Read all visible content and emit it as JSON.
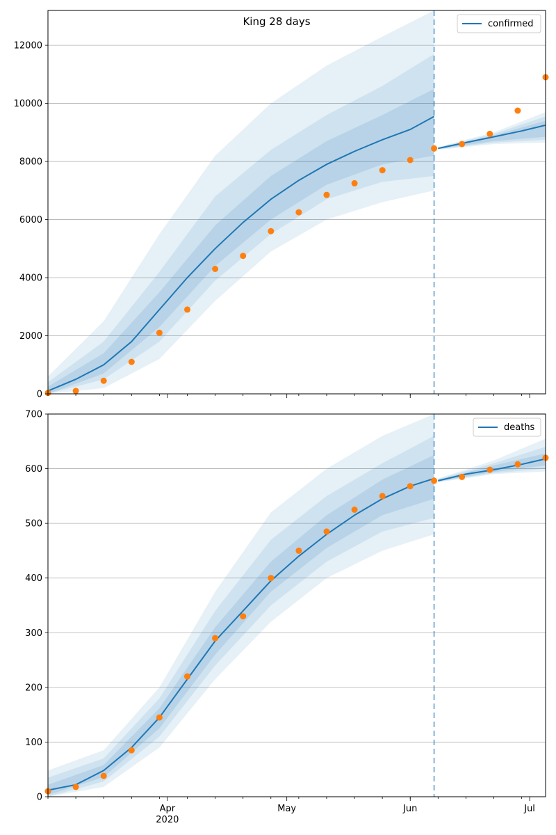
{
  "title": "King 28 days",
  "colors": {
    "line": "#1f77b4",
    "observed": "#ff7f0e",
    "band": "#1f77b4",
    "grid": "#b0b0b0"
  },
  "x_axis": {
    "start_date": "2020-03-02",
    "end_date": "2020-07-05",
    "cutoff_date": "2020-06-07",
    "ticks": [
      {
        "date": "2020-04-01",
        "label": "Apr",
        "sublabel": "2020"
      },
      {
        "date": "2020-05-01",
        "label": "May",
        "sublabel": ""
      },
      {
        "date": "2020-06-01",
        "label": "Jun",
        "sublabel": ""
      },
      {
        "date": "2020-07-01",
        "label": "Jul",
        "sublabel": ""
      }
    ]
  },
  "chart_data": [
    {
      "type": "line",
      "panel": "top",
      "title": "King 28 days",
      "legend": {
        "label": "confirmed",
        "placement": "top-right"
      },
      "ylim": [
        0,
        13200
      ],
      "yticks": [
        0,
        2000,
        4000,
        6000,
        8000,
        10000,
        12000
      ],
      "grid": "y",
      "median": [
        {
          "x": "2020-03-02",
          "y": 100
        },
        {
          "x": "2020-03-09",
          "y": 500
        },
        {
          "x": "2020-03-16",
          "y": 1000
        },
        {
          "x": "2020-03-23",
          "y": 1800
        },
        {
          "x": "2020-03-30",
          "y": 2900
        },
        {
          "x": "2020-04-06",
          "y": 4000
        },
        {
          "x": "2020-04-13",
          "y": 5000
        },
        {
          "x": "2020-04-20",
          "y": 5900
        },
        {
          "x": "2020-04-27",
          "y": 6700
        },
        {
          "x": "2020-05-04",
          "y": 7350
        },
        {
          "x": "2020-05-11",
          "y": 7900
        },
        {
          "x": "2020-05-18",
          "y": 8350
        },
        {
          "x": "2020-05-25",
          "y": 8750
        },
        {
          "x": "2020-06-01",
          "y": 9100
        },
        {
          "x": "2020-06-07",
          "y": 9550
        },
        {
          "x": "2020-06-08",
          "y": 8450
        },
        {
          "x": "2020-06-15",
          "y": 8650
        },
        {
          "x": "2020-06-22",
          "y": 8850
        },
        {
          "x": "2020-06-29",
          "y": 9050
        },
        {
          "x": "2020-07-05",
          "y": 9250
        }
      ],
      "bands": [
        {
          "name": "outer",
          "points": [
            {
              "x": "2020-03-02",
              "lo": 0,
              "hi": 600
            },
            {
              "x": "2020-03-16",
              "lo": 200,
              "hi": 2500
            },
            {
              "x": "2020-03-30",
              "lo": 1200,
              "hi": 5500
            },
            {
              "x": "2020-04-13",
              "lo": 3200,
              "hi": 8200
            },
            {
              "x": "2020-04-27",
              "lo": 4900,
              "hi": 10000
            },
            {
              "x": "2020-05-11",
              "lo": 6000,
              "hi": 11300
            },
            {
              "x": "2020-05-25",
              "lo": 6600,
              "hi": 12300
            },
            {
              "x": "2020-06-07",
              "lo": 7000,
              "hi": 13200
            },
            {
              "x": "2020-06-08",
              "lo": 8400,
              "hi": 8500
            },
            {
              "x": "2020-06-22",
              "lo": 8600,
              "hi": 9000
            },
            {
              "x": "2020-07-05",
              "lo": 8650,
              "hi": 9700
            }
          ]
        },
        {
          "name": "middle",
          "points": [
            {
              "x": "2020-03-02",
              "lo": 0,
              "hi": 400
            },
            {
              "x": "2020-03-16",
              "lo": 500,
              "hi": 1800
            },
            {
              "x": "2020-03-30",
              "lo": 1800,
              "hi": 4200
            },
            {
              "x": "2020-04-13",
              "lo": 3900,
              "hi": 6800
            },
            {
              "x": "2020-04-27",
              "lo": 5500,
              "hi": 8400
            },
            {
              "x": "2020-05-11",
              "lo": 6700,
              "hi": 9600
            },
            {
              "x": "2020-05-25",
              "lo": 7300,
              "hi": 10600
            },
            {
              "x": "2020-06-07",
              "lo": 7500,
              "hi": 11700
            },
            {
              "x": "2020-06-08",
              "lo": 8420,
              "hi": 8480
            },
            {
              "x": "2020-06-22",
              "lo": 8650,
              "hi": 8950
            },
            {
              "x": "2020-07-05",
              "lo": 8750,
              "hi": 9550
            }
          ]
        },
        {
          "name": "inner",
          "points": [
            {
              "x": "2020-03-02",
              "lo": 0,
              "hi": 250
            },
            {
              "x": "2020-03-16",
              "lo": 700,
              "hi": 1400
            },
            {
              "x": "2020-03-30",
              "lo": 2300,
              "hi": 3500
            },
            {
              "x": "2020-04-13",
              "lo": 4400,
              "hi": 5800
            },
            {
              "x": "2020-04-27",
              "lo": 6000,
              "hi": 7500
            },
            {
              "x": "2020-05-11",
              "lo": 7200,
              "hi": 8700
            },
            {
              "x": "2020-05-25",
              "lo": 7900,
              "hi": 9600
            },
            {
              "x": "2020-06-07",
              "lo": 8200,
              "hi": 10500
            },
            {
              "x": "2020-06-08",
              "lo": 8430,
              "hi": 8470
            },
            {
              "x": "2020-06-22",
              "lo": 8700,
              "hi": 8900
            },
            {
              "x": "2020-07-05",
              "lo": 8850,
              "hi": 9400
            }
          ]
        }
      ],
      "observed": [
        {
          "x": "2020-03-02",
          "y": 30
        },
        {
          "x": "2020-03-09",
          "y": 100
        },
        {
          "x": "2020-03-16",
          "y": 450
        },
        {
          "x": "2020-03-23",
          "y": 1100
        },
        {
          "x": "2020-03-30",
          "y": 2100
        },
        {
          "x": "2020-04-06",
          "y": 2900
        },
        {
          "x": "2020-04-13",
          "y": 4300
        },
        {
          "x": "2020-04-20",
          "y": 4750
        },
        {
          "x": "2020-04-27",
          "y": 5600
        },
        {
          "x": "2020-05-04",
          "y": 6250
        },
        {
          "x": "2020-05-11",
          "y": 6850
        },
        {
          "x": "2020-05-18",
          "y": 7250
        },
        {
          "x": "2020-05-25",
          "y": 7700
        },
        {
          "x": "2020-06-01",
          "y": 8050
        },
        {
          "x": "2020-06-07",
          "y": 8450
        },
        {
          "x": "2020-06-14",
          "y": 8600
        },
        {
          "x": "2020-06-21",
          "y": 8950
        },
        {
          "x": "2020-06-28",
          "y": 9750
        },
        {
          "x": "2020-07-05",
          "y": 10900
        }
      ]
    },
    {
      "type": "line",
      "panel": "bottom",
      "legend": {
        "label": "deaths",
        "placement": "top-right"
      },
      "ylim": [
        0,
        700
      ],
      "yticks": [
        0,
        100,
        200,
        300,
        400,
        500,
        600,
        700
      ],
      "grid": "y",
      "median": [
        {
          "x": "2020-03-02",
          "y": 12
        },
        {
          "x": "2020-03-09",
          "y": 22
        },
        {
          "x": "2020-03-16",
          "y": 48
        },
        {
          "x": "2020-03-23",
          "y": 90
        },
        {
          "x": "2020-03-30",
          "y": 145
        },
        {
          "x": "2020-04-06",
          "y": 215
        },
        {
          "x": "2020-04-13",
          "y": 285
        },
        {
          "x": "2020-04-20",
          "y": 340
        },
        {
          "x": "2020-04-27",
          "y": 395
        },
        {
          "x": "2020-05-04",
          "y": 440
        },
        {
          "x": "2020-05-11",
          "y": 480
        },
        {
          "x": "2020-05-18",
          "y": 515
        },
        {
          "x": "2020-05-25",
          "y": 545
        },
        {
          "x": "2020-06-01",
          "y": 568
        },
        {
          "x": "2020-06-07",
          "y": 582
        },
        {
          "x": "2020-06-08",
          "y": 578
        },
        {
          "x": "2020-06-15",
          "y": 590
        },
        {
          "x": "2020-06-22",
          "y": 598
        },
        {
          "x": "2020-06-29",
          "y": 608
        },
        {
          "x": "2020-07-05",
          "y": 618
        }
      ],
      "bands": [
        {
          "name": "outer",
          "points": [
            {
              "x": "2020-03-02",
              "lo": 0,
              "hi": 48
            },
            {
              "x": "2020-03-16",
              "lo": 18,
              "hi": 85
            },
            {
              "x": "2020-03-30",
              "lo": 90,
              "hi": 200
            },
            {
              "x": "2020-04-13",
              "lo": 215,
              "hi": 375
            },
            {
              "x": "2020-04-27",
              "lo": 320,
              "hi": 520
            },
            {
              "x": "2020-05-11",
              "lo": 400,
              "hi": 600
            },
            {
              "x": "2020-05-25",
              "lo": 450,
              "hi": 660
            },
            {
              "x": "2020-06-07",
              "lo": 480,
              "hi": 700
            },
            {
              "x": "2020-06-08",
              "lo": 575,
              "hi": 582
            },
            {
              "x": "2020-06-22",
              "lo": 590,
              "hi": 615
            },
            {
              "x": "2020-07-05",
              "lo": 595,
              "hi": 655
            }
          ]
        },
        {
          "name": "middle",
          "points": [
            {
              "x": "2020-03-02",
              "lo": 0,
              "hi": 35
            },
            {
              "x": "2020-03-16",
              "lo": 28,
              "hi": 70
            },
            {
              "x": "2020-03-30",
              "lo": 110,
              "hi": 180
            },
            {
              "x": "2020-04-13",
              "lo": 240,
              "hi": 340
            },
            {
              "x": "2020-04-27",
              "lo": 350,
              "hi": 470
            },
            {
              "x": "2020-05-11",
              "lo": 430,
              "hi": 550
            },
            {
              "x": "2020-05-25",
              "lo": 485,
              "hi": 610
            },
            {
              "x": "2020-06-07",
              "lo": 510,
              "hi": 660
            },
            {
              "x": "2020-06-08",
              "lo": 576,
              "hi": 581
            },
            {
              "x": "2020-06-22",
              "lo": 592,
              "hi": 610
            },
            {
              "x": "2020-07-05",
              "lo": 600,
              "hi": 640
            }
          ]
        },
        {
          "name": "inner",
          "points": [
            {
              "x": "2020-03-02",
              "lo": 3,
              "hi": 22
            },
            {
              "x": "2020-03-16",
              "lo": 36,
              "hi": 58
            },
            {
              "x": "2020-03-30",
              "lo": 125,
              "hi": 162
            },
            {
              "x": "2020-04-13",
              "lo": 260,
              "hi": 310
            },
            {
              "x": "2020-04-27",
              "lo": 375,
              "hi": 430
            },
            {
              "x": "2020-05-11",
              "lo": 455,
              "hi": 515
            },
            {
              "x": "2020-05-25",
              "lo": 515,
              "hi": 580
            },
            {
              "x": "2020-06-07",
              "lo": 545,
              "hi": 625
            },
            {
              "x": "2020-06-08",
              "lo": 577,
              "hi": 580
            },
            {
              "x": "2020-06-22",
              "lo": 594,
              "hi": 606
            },
            {
              "x": "2020-07-05",
              "lo": 606,
              "hi": 628
            }
          ]
        }
      ],
      "observed": [
        {
          "x": "2020-03-02",
          "y": 10
        },
        {
          "x": "2020-03-09",
          "y": 18
        },
        {
          "x": "2020-03-16",
          "y": 38
        },
        {
          "x": "2020-03-23",
          "y": 85
        },
        {
          "x": "2020-03-30",
          "y": 145
        },
        {
          "x": "2020-04-06",
          "y": 220
        },
        {
          "x": "2020-04-13",
          "y": 290
        },
        {
          "x": "2020-04-20",
          "y": 330
        },
        {
          "x": "2020-04-27",
          "y": 400
        },
        {
          "x": "2020-05-04",
          "y": 450
        },
        {
          "x": "2020-05-11",
          "y": 485
        },
        {
          "x": "2020-05-18",
          "y": 525
        },
        {
          "x": "2020-05-25",
          "y": 550
        },
        {
          "x": "2020-06-01",
          "y": 568
        },
        {
          "x": "2020-06-07",
          "y": 578
        },
        {
          "x": "2020-06-14",
          "y": 585
        },
        {
          "x": "2020-06-21",
          "y": 598
        },
        {
          "x": "2020-06-28",
          "y": 608
        },
        {
          "x": "2020-07-05",
          "y": 620
        }
      ]
    }
  ]
}
